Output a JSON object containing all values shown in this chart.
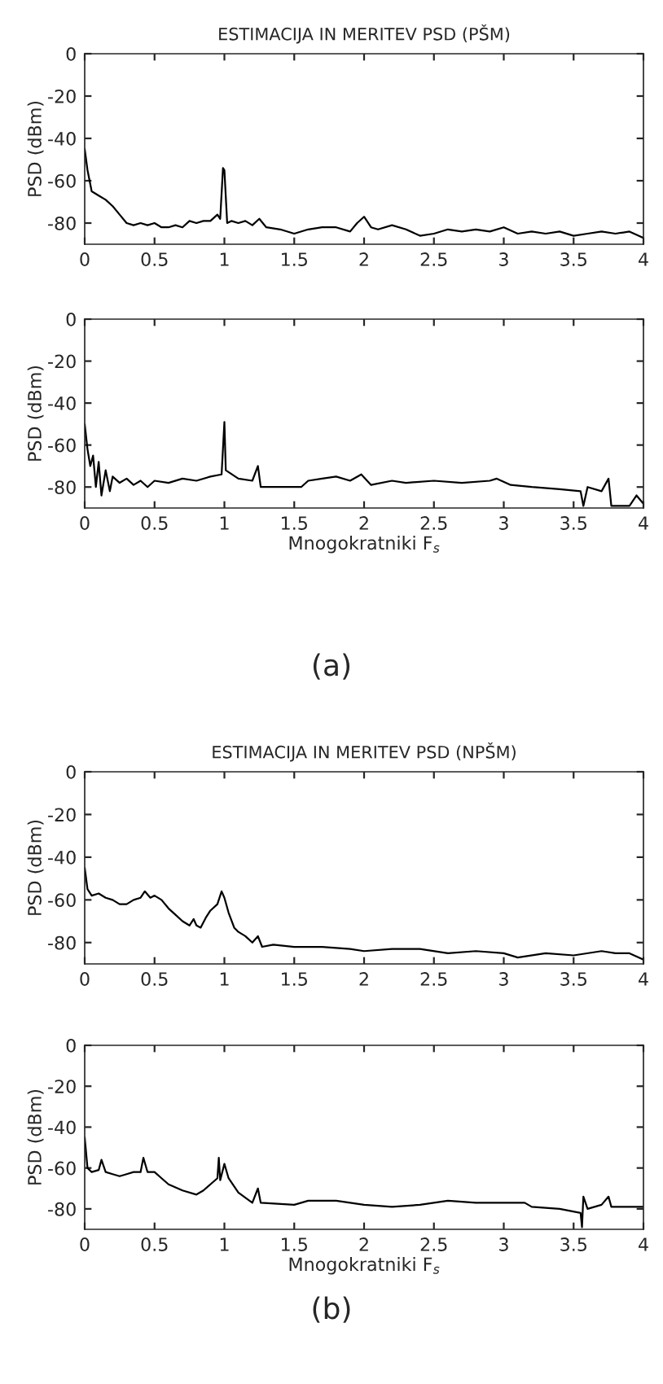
{
  "chart_data": [
    {
      "type": "line",
      "title": "ESTIMACIJA IN MERITEV PSD (PŠM)",
      "ylabel": "PSD (dBm)",
      "xlim": [
        0,
        4
      ],
      "ylim": [
        -90,
        0
      ],
      "xticks": [
        0,
        0.5,
        1,
        1.5,
        2,
        2.5,
        3,
        3.5,
        4
      ],
      "yticks": [
        -80,
        -60,
        -40,
        -20,
        0
      ],
      "grid": false,
      "series": [
        {
          "color": "#000000",
          "x": [
            0,
            0.02,
            0.05,
            0.1,
            0.15,
            0.2,
            0.25,
            0.3,
            0.35,
            0.4,
            0.45,
            0.5,
            0.55,
            0.6,
            0.65,
            0.7,
            0.75,
            0.8,
            0.85,
            0.9,
            0.95,
            0.97,
            0.99,
            1.0,
            1.02,
            1.05,
            1.1,
            1.15,
            1.2,
            1.25,
            1.3,
            1.4,
            1.5,
            1.6,
            1.7,
            1.8,
            1.9,
            1.95,
            2.0,
            2.05,
            2.1,
            2.2,
            2.3,
            2.4,
            2.5,
            2.6,
            2.7,
            2.8,
            2.9,
            3.0,
            3.1,
            3.2,
            3.3,
            3.4,
            3.5,
            3.6,
            3.7,
            3.8,
            3.9,
            4.0
          ],
          "values": [
            -45,
            -55,
            -65,
            -67,
            -69,
            -72,
            -76,
            -80,
            -81,
            -80,
            -81,
            -80,
            -82,
            -82,
            -81,
            -82,
            -79,
            -80,
            -79,
            -79,
            -76,
            -78,
            -54,
            -55,
            -80,
            -79,
            -80,
            -79,
            -81,
            -78,
            -82,
            -83,
            -85,
            -83,
            -82,
            -82,
            -84,
            -80,
            -77,
            -82,
            -83,
            -81,
            -83,
            -86,
            -85,
            -83,
            -84,
            -83,
            -84,
            -82,
            -85,
            -84,
            -85,
            -84,
            -86,
            -85,
            -84,
            -85,
            -84,
            -87
          ]
        }
      ]
    },
    {
      "type": "line",
      "xlabel": "Mnogokratniki F$_{s}$",
      "ylabel": "PSD (dBm)",
      "xlim": [
        0,
        4
      ],
      "ylim": [
        -90,
        0
      ],
      "xticks": [
        0,
        0.5,
        1,
        1.5,
        2,
        2.5,
        3,
        3.5,
        4
      ],
      "yticks": [
        -80,
        -60,
        -40,
        -20,
        0
      ],
      "grid": false,
      "annotations": [
        "(a)"
      ],
      "series": [
        {
          "color": "#000000",
          "x": [
            0,
            0.02,
            0.04,
            0.06,
            0.08,
            0.1,
            0.12,
            0.15,
            0.18,
            0.2,
            0.25,
            0.3,
            0.35,
            0.4,
            0.45,
            0.5,
            0.6,
            0.7,
            0.8,
            0.9,
            0.98,
            1.0,
            1.01,
            1.1,
            1.2,
            1.24,
            1.26,
            1.4,
            1.55,
            1.6,
            1.7,
            1.8,
            1.9,
            1.98,
            2.05,
            2.2,
            2.3,
            2.5,
            2.7,
            2.9,
            2.95,
            3.05,
            3.2,
            3.4,
            3.55,
            3.57,
            3.6,
            3.7,
            3.75,
            3.77,
            3.9,
            3.95,
            4.0
          ],
          "values": [
            -50,
            -62,
            -70,
            -65,
            -80,
            -68,
            -84,
            -72,
            -82,
            -75,
            -78,
            -76,
            -79,
            -77,
            -80,
            -77,
            -78,
            -76,
            -77,
            -75,
            -74,
            -49,
            -72,
            -76,
            -77,
            -70,
            -80,
            -80,
            -80,
            -77,
            -76,
            -75,
            -77,
            -74,
            -79,
            -77,
            -78,
            -77,
            -78,
            -77,
            -76,
            -79,
            -80,
            -81,
            -82,
            -89,
            -80,
            -82,
            -76,
            -89,
            -89,
            -84,
            -88
          ]
        }
      ]
    },
    {
      "type": "line",
      "title": "ESTIMACIJA IN MERITEV PSD (NPŠM)",
      "ylabel": "PSD (dBm)",
      "xlim": [
        0,
        4
      ],
      "ylim": [
        -90,
        0
      ],
      "xticks": [
        0,
        0.5,
        1,
        1.5,
        2,
        2.5,
        3,
        3.5,
        4
      ],
      "yticks": [
        -80,
        -60,
        -40,
        -20,
        0
      ],
      "grid": false,
      "series": [
        {
          "color": "#000000",
          "x": [
            0,
            0.02,
            0.05,
            0.1,
            0.15,
            0.2,
            0.25,
            0.3,
            0.35,
            0.4,
            0.43,
            0.47,
            0.5,
            0.55,
            0.6,
            0.65,
            0.7,
            0.75,
            0.78,
            0.8,
            0.83,
            0.87,
            0.9,
            0.95,
            0.98,
            1.0,
            1.03,
            1.07,
            1.1,
            1.15,
            1.2,
            1.24,
            1.27,
            1.35,
            1.5,
            1.7,
            1.9,
            2.0,
            2.2,
            2.4,
            2.6,
            2.8,
            3.0,
            3.1,
            3.3,
            3.5,
            3.7,
            3.8,
            3.9,
            4.0
          ],
          "values": [
            -45,
            -55,
            -58,
            -57,
            -59,
            -60,
            -62,
            -62,
            -60,
            -59,
            -56,
            -59,
            -58,
            -60,
            -64,
            -67,
            -70,
            -72,
            -69,
            -72,
            -73,
            -68,
            -65,
            -62,
            -56,
            -59,
            -66,
            -73,
            -75,
            -77,
            -80,
            -77,
            -82,
            -81,
            -82,
            -82,
            -83,
            -84,
            -83,
            -83,
            -85,
            -84,
            -85,
            -87,
            -85,
            -86,
            -84,
            -85,
            -85,
            -88
          ]
        }
      ]
    },
    {
      "type": "line",
      "xlabel": "Mnogokratniki F$_{s}$",
      "ylabel": "PSD (dBm)",
      "xlim": [
        0,
        4
      ],
      "ylim": [
        -90,
        0
      ],
      "xticks": [
        0,
        0.5,
        1,
        1.5,
        2,
        2.5,
        3,
        3.5,
        4
      ],
      "yticks": [
        -80,
        -60,
        -40,
        -20,
        0
      ],
      "grid": false,
      "annotations": [
        "(b)"
      ],
      "series": [
        {
          "color": "#000000",
          "x": [
            0,
            0.02,
            0.05,
            0.1,
            0.12,
            0.15,
            0.2,
            0.25,
            0.3,
            0.35,
            0.4,
            0.42,
            0.45,
            0.5,
            0.55,
            0.6,
            0.7,
            0.8,
            0.85,
            0.9,
            0.95,
            0.96,
            0.97,
            1.0,
            1.03,
            1.1,
            1.2,
            1.24,
            1.26,
            1.5,
            1.6,
            1.8,
            2.0,
            2.2,
            2.4,
            2.6,
            2.8,
            3.0,
            3.15,
            3.2,
            3.4,
            3.55,
            3.56,
            3.57,
            3.6,
            3.7,
            3.75,
            3.77,
            3.9,
            4.0
          ],
          "values": [
            -45,
            -60,
            -62,
            -61,
            -56,
            -62,
            -63,
            -64,
            -63,
            -62,
            -62,
            -55,
            -62,
            -62,
            -65,
            -68,
            -71,
            -73,
            -71,
            -68,
            -65,
            -55,
            -66,
            -58,
            -65,
            -72,
            -77,
            -70,
            -77,
            -78,
            -76,
            -76,
            -78,
            -79,
            -78,
            -76,
            -77,
            -77,
            -77,
            -79,
            -80,
            -82,
            -89,
            -74,
            -80,
            -78,
            -74,
            -79,
            -79,
            -79
          ]
        }
      ]
    }
  ]
}
